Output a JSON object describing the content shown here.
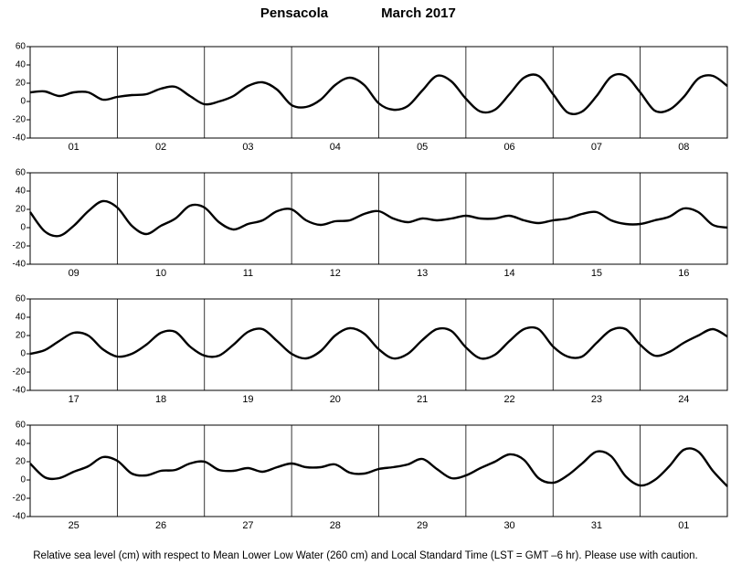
{
  "header": {
    "title": "Pensacola",
    "subtitle": "March 2017"
  },
  "footnote": "Relative sea level (cm) with respect to Mean Lower Low Water (260 cm) and Local Standard Time (LST = GMT –6 hr). Please use with caution.",
  "chart_data": [
    {
      "type": "line",
      "categories": [
        "01",
        "02",
        "03",
        "04",
        "05",
        "06",
        "07",
        "08"
      ],
      "x": [
        0,
        4,
        8,
        12,
        16,
        20,
        24,
        28,
        32,
        36,
        40,
        44,
        48,
        52,
        56,
        60,
        64,
        68,
        72,
        76,
        80,
        84,
        88,
        92,
        96,
        100,
        104,
        108,
        112,
        116,
        120,
        124,
        128,
        132,
        136,
        140,
        144,
        148,
        152,
        156,
        160,
        164,
        168,
        172,
        176,
        180,
        184,
        188,
        192
      ],
      "xlim": [
        0,
        192
      ],
      "ylim": [
        -40,
        60
      ],
      "yticks": [
        -40,
        -20,
        0,
        20,
        40,
        60
      ],
      "series": [
        {
          "color": "#000000",
          "values": [
            10,
            11,
            6,
            10,
            10,
            2,
            5,
            7,
            8,
            14,
            16,
            6,
            -3,
            0,
            6,
            17,
            21,
            13,
            -4,
            -6,
            2,
            18,
            26,
            18,
            -2,
            -9,
            -5,
            12,
            28,
            22,
            3,
            -11,
            -9,
            8,
            26,
            28,
            8,
            -12,
            -11,
            6,
            27,
            28,
            10,
            -10,
            -9,
            5,
            25,
            28,
            17
          ]
        }
      ]
    },
    {
      "type": "line",
      "categories": [
        "09",
        "10",
        "11",
        "12",
        "13",
        "14",
        "15",
        "16"
      ],
      "x": [
        0,
        4,
        8,
        12,
        16,
        20,
        24,
        28,
        32,
        36,
        40,
        44,
        48,
        52,
        56,
        60,
        64,
        68,
        72,
        76,
        80,
        84,
        88,
        92,
        96,
        100,
        104,
        108,
        112,
        116,
        120,
        124,
        128,
        132,
        136,
        140,
        144,
        148,
        152,
        156,
        160,
        164,
        168,
        172,
        176,
        180,
        184,
        188,
        192
      ],
      "xlim": [
        0,
        192
      ],
      "ylim": [
        -40,
        60
      ],
      "yticks": [
        -40,
        -20,
        0,
        20,
        40,
        60
      ],
      "series": [
        {
          "color": "#000000",
          "values": [
            17,
            -4,
            -9,
            2,
            18,
            29,
            22,
            2,
            -7,
            2,
            10,
            24,
            22,
            6,
            -2,
            4,
            8,
            18,
            20,
            8,
            3,
            7,
            8,
            15,
            18,
            10,
            6,
            10,
            8,
            10,
            13,
            10,
            10,
            13,
            8,
            5,
            8,
            10,
            15,
            17,
            8,
            4,
            4,
            8,
            12,
            21,
            17,
            3,
            0
          ]
        }
      ]
    },
    {
      "type": "line",
      "categories": [
        "17",
        "18",
        "19",
        "20",
        "21",
        "22",
        "23",
        "24"
      ],
      "x": [
        0,
        4,
        8,
        12,
        16,
        20,
        24,
        28,
        32,
        36,
        40,
        44,
        48,
        52,
        56,
        60,
        64,
        68,
        72,
        76,
        80,
        84,
        88,
        92,
        96,
        100,
        104,
        108,
        112,
        116,
        120,
        124,
        128,
        132,
        136,
        140,
        144,
        148,
        152,
        156,
        160,
        164,
        168,
        172,
        176,
        180,
        184,
        188,
        192
      ],
      "xlim": [
        0,
        192
      ],
      "ylim": [
        -40,
        60
      ],
      "yticks": [
        -40,
        -20,
        0,
        20,
        40,
        60
      ],
      "series": [
        {
          "color": "#000000",
          "values": [
            0,
            4,
            14,
            23,
            20,
            5,
            -3,
            0,
            10,
            23,
            24,
            8,
            -2,
            -2,
            10,
            24,
            27,
            14,
            0,
            -5,
            3,
            20,
            28,
            22,
            5,
            -5,
            0,
            15,
            27,
            25,
            7,
            -5,
            -1,
            14,
            27,
            27,
            8,
            -3,
            -3,
            12,
            26,
            27,
            10,
            -2,
            2,
            12,
            20,
            27,
            19
          ]
        }
      ]
    },
    {
      "type": "line",
      "categories": [
        "25",
        "26",
        "27",
        "28",
        "29",
        "30",
        "31",
        "01"
      ],
      "x": [
        0,
        4,
        8,
        12,
        16,
        20,
        24,
        28,
        32,
        36,
        40,
        44,
        48,
        52,
        56,
        60,
        64,
        68,
        72,
        76,
        80,
        84,
        88,
        92,
        96,
        100,
        104,
        108,
        112,
        116,
        120,
        124,
        128,
        132,
        136,
        140,
        144,
        148,
        152,
        156,
        160,
        164,
        168,
        172,
        176,
        180,
        184,
        188,
        192
      ],
      "xlim": [
        0,
        192
      ],
      "ylim": [
        -40,
        60
      ],
      "yticks": [
        -40,
        -20,
        0,
        20,
        40,
        60
      ],
      "series": [
        {
          "color": "#000000",
          "values": [
            18,
            3,
            2,
            9,
            15,
            25,
            21,
            7,
            5,
            10,
            11,
            18,
            20,
            11,
            10,
            13,
            9,
            14,
            18,
            14,
            14,
            17,
            8,
            7,
            12,
            14,
            17,
            23,
            12,
            2,
            5,
            13,
            20,
            28,
            22,
            2,
            -3,
            5,
            18,
            31,
            26,
            4,
            -6,
            0,
            15,
            33,
            31,
            10,
            -7
          ]
        }
      ]
    }
  ]
}
